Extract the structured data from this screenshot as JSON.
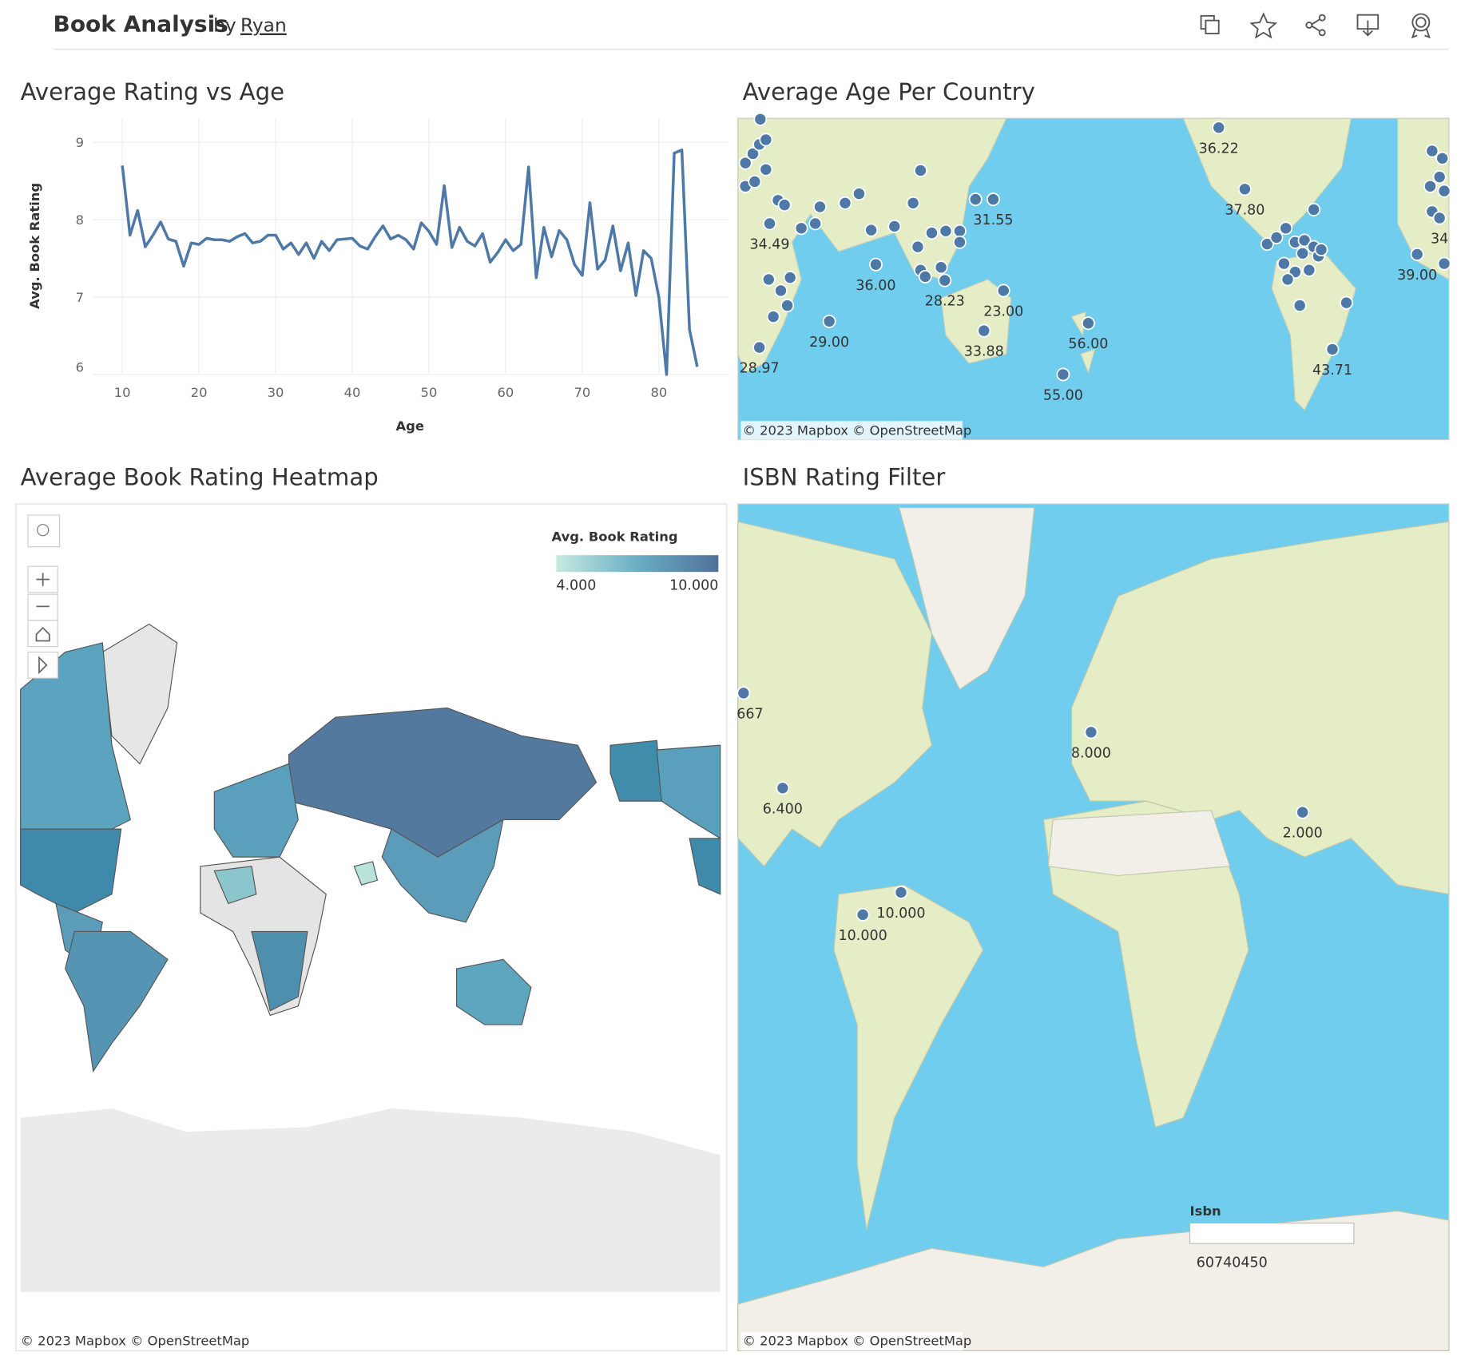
{
  "header": {
    "title": "Book Analysis",
    "by": "by",
    "author": "Ryan"
  },
  "chart_data": {
    "type": "line",
    "title": "Average Rating vs Age",
    "x_label": "Age",
    "y_label": "Avg. Book Rating",
    "color": "#4e79a7",
    "grid": true,
    "x": [
      10,
      11,
      12,
      13,
      14,
      15,
      16,
      17,
      18,
      19,
      20,
      21,
      22,
      23,
      24,
      25,
      26,
      27,
      28,
      29,
      30,
      31,
      32,
      33,
      34,
      35,
      36,
      37,
      38,
      39,
      40,
      41,
      42,
      43,
      44,
      45,
      46,
      47,
      48,
      49,
      50,
      51,
      52,
      53,
      54,
      55,
      56,
      57,
      58,
      59,
      60,
      61,
      62,
      63,
      64,
      65,
      66,
      67,
      68,
      69,
      70,
      71,
      72,
      73,
      74,
      75,
      76,
      77,
      78,
      79,
      80,
      81,
      82,
      83,
      84,
      85
    ],
    "values": [
      8.7,
      7.8,
      8.12,
      7.65,
      7.8,
      7.97,
      7.75,
      7.72,
      7.4,
      7.7,
      7.68,
      7.76,
      7.74,
      7.74,
      7.72,
      7.78,
      7.82,
      7.7,
      7.72,
      7.8,
      7.8,
      7.62,
      7.7,
      7.55,
      7.7,
      7.5,
      7.72,
      7.6,
      7.74,
      7.75,
      7.76,
      7.66,
      7.62,
      7.78,
      7.92,
      7.75,
      7.8,
      7.74,
      7.62,
      7.96,
      7.85,
      7.68,
      8.44,
      7.64,
      7.9,
      7.72,
      7.66,
      7.82,
      7.45,
      7.58,
      7.74,
      7.6,
      7.68,
      8.68,
      7.25,
      7.9,
      7.52,
      7.86,
      7.74,
      7.42,
      7.28,
      8.22,
      7.36,
      7.48,
      7.92,
      7.34,
      7.7,
      7.02,
      7.6,
      7.5,
      7.0,
      6.0,
      8.86,
      8.9,
      6.58,
      6.1
    ],
    "xlim": [
      6.2,
      89.1
    ],
    "xticks": [
      10,
      20,
      30,
      40,
      50,
      60,
      70,
      80
    ],
    "ylim": [
      6,
      9.31
    ],
    "yticks": [
      6,
      7,
      8,
      9
    ]
  },
  "age_map": {
    "title": "Average Age Per Country",
    "attribution": "© 2023 Mapbox © OpenStreetMap",
    "labels": [
      "36.22",
      "37.80",
      "31.55",
      "34.49",
      "36.00",
      "28.23",
      "23.00",
      "29.00",
      "33.88",
      "56.00",
      "28.97",
      "55.00",
      "43.71",
      "39.00",
      "34"
    ]
  },
  "heatmap": {
    "title": "Average Book Rating Heatmap",
    "legend_title": "Avg. Book Rating",
    "legend_min": "4.000",
    "legend_max": "10.000",
    "attribution": "© 2023 Mapbox © OpenStreetMap"
  },
  "isbn_map": {
    "title": "ISBN Rating Filter",
    "labels": [
      "667",
      "8.000",
      "6.400",
      "2.000",
      "10.000",
      "10.000"
    ],
    "filter_label": "Isbn",
    "filter_value": "60740450",
    "attribution": "© 2023 Mapbox © OpenStreetMap"
  }
}
